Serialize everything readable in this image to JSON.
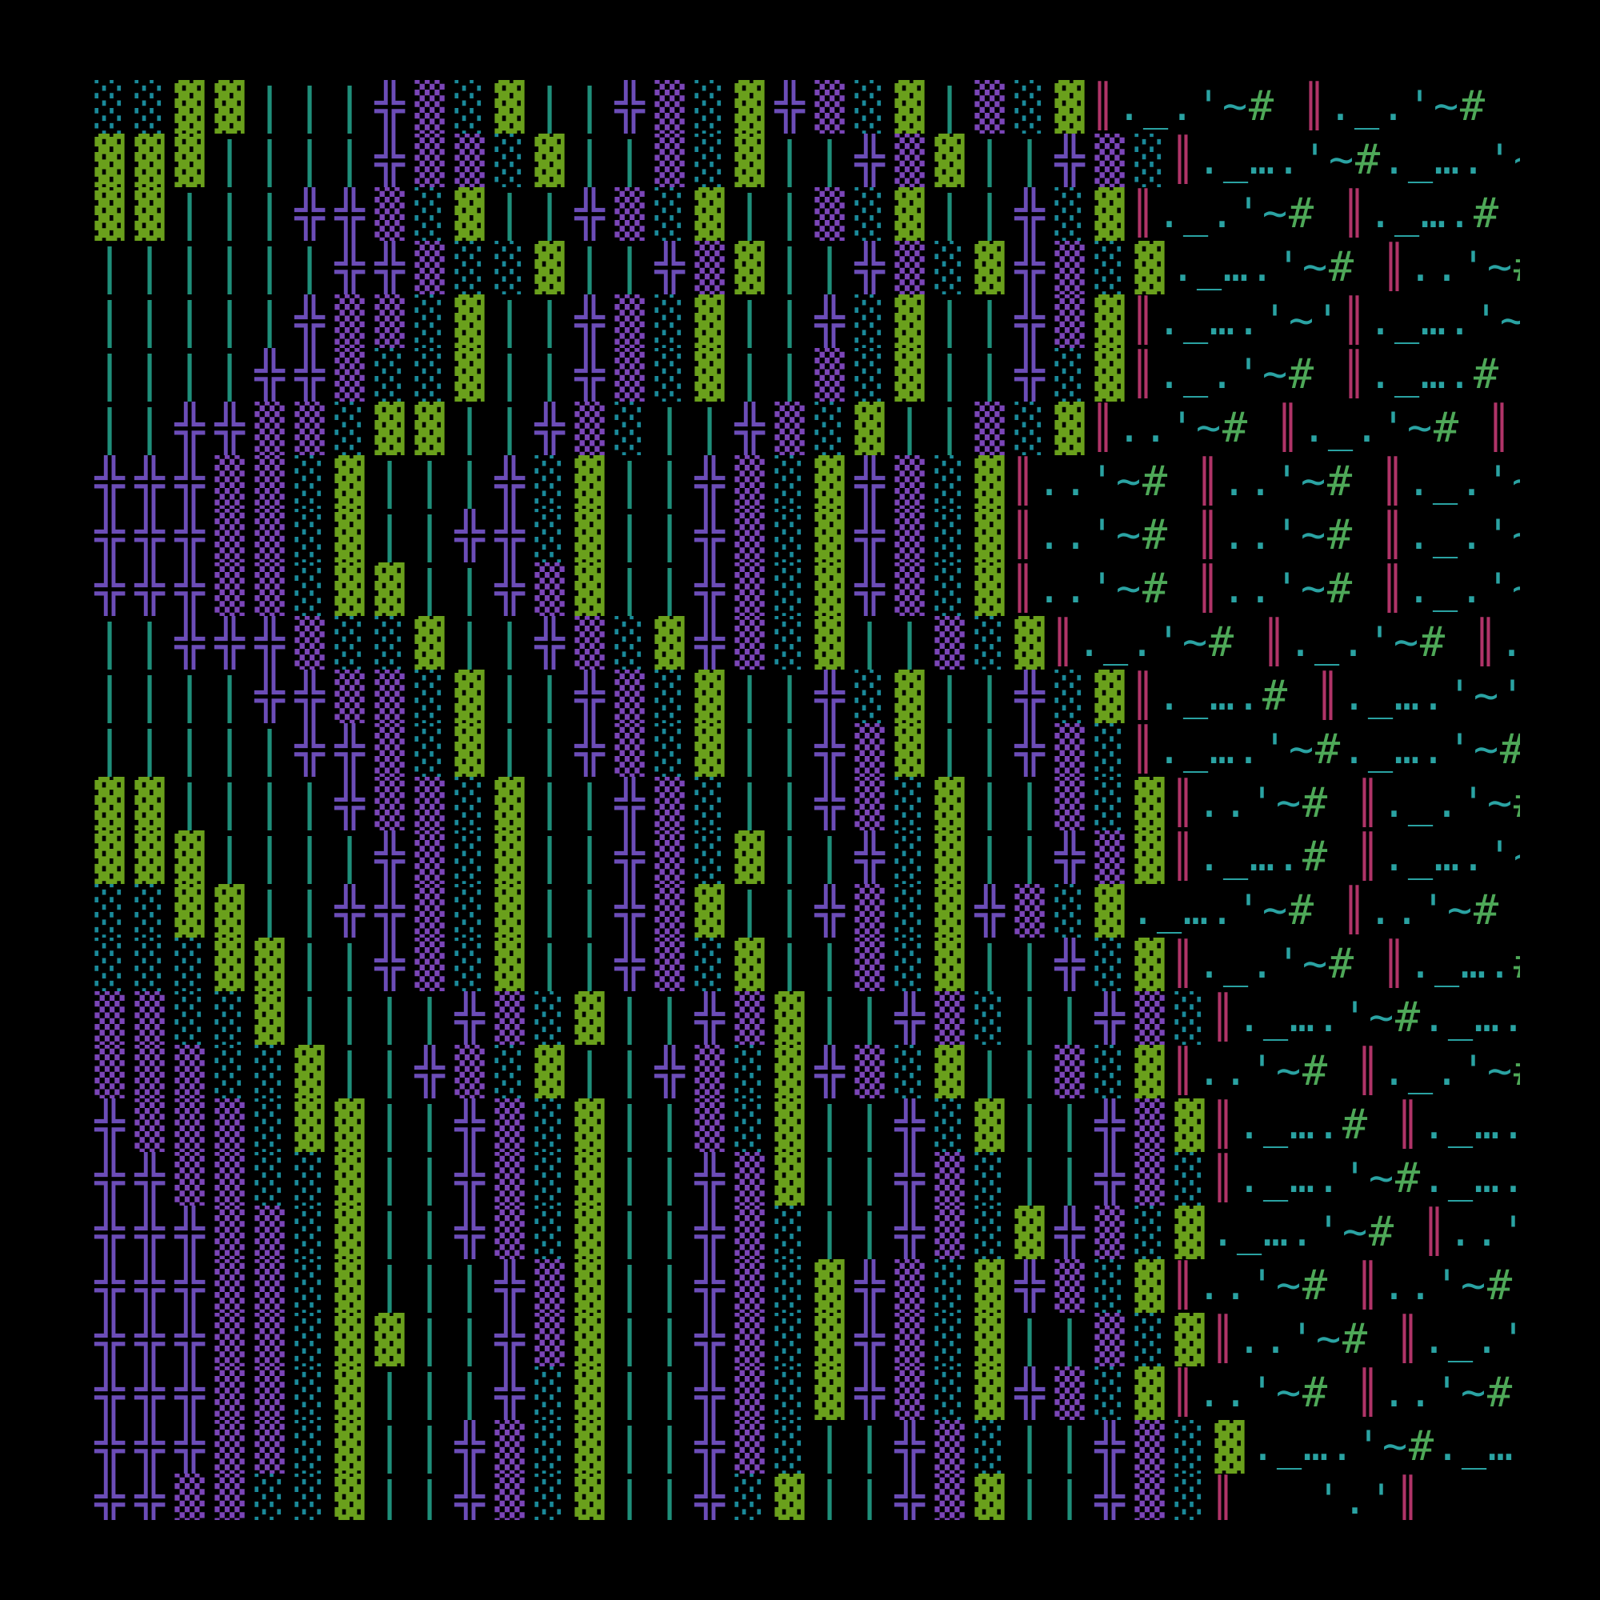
{
  "rows": [
    {
      "blocks": "░░▓▓|||╬▒░▓||╬▒░▓╬▒░▓|▒░▓",
      "text": "║._.'~# ║._.'~# ║._….'~#"
    },
    {
      "blocks": "▓▓▓||||╬▒▒░▓||▒░▓||╬▒▓||╬▒░",
      "text": "║._….'~#._….'~# ║..'~# ║."
    },
    {
      "blocks": "▓▓|||╬╬▒░▓||╬▒░▓||▒░▓||╬░▓",
      "text": "║._.'~# ║._….# ║._….'~# ║."
    },
    {
      "blocks": "||||||╬╬▒░░▓||╬▒▓||╬▒░▓╬▒░▓",
      "text": "._….'~# ║..'~# ║._.'~# ║._…"
    },
    {
      "blocks": "|||||╬▒▒░▓||╬▒░▓||╬░▓||╬▒▓",
      "text": "║._….'~'║._….'~#._….'~# ║._…"
    },
    {
      "blocks": "||||╬╬▒░░▓||╬▒░▓||▒░▓||╬░▓",
      "text": "║._.'~# ║._….# ║._….'~#._….'"
    },
    {
      "blocks": "||╬╬▒▒░▓▓||╬▒░||╬▒░▓||▒░▓",
      "text": "║..'~# ║._.'~# ║._….# ║._….'"
    },
    {
      "blocks": "╬╬╬▒▒░▓|||╬░▓||╬▒░▓╬▒░▓",
      "text": "║..'~# ║..'~# ║._.'~# ║._….'"
    },
    {
      "blocks": "╬╬╬▒▒░▓||╬╬░▓||╬▒░▓╬▒░▓",
      "text": "║..'~# ║..'~# ║._.'~# ║._….'"
    },
    {
      "blocks": "╬╬╬▒▒░▓▓||╬▒▓||╬▒░▓╬▒░▓",
      "text": "║..'~# ║..'~# ║._.'~# ║._….'"
    },
    {
      "blocks": "||╬╬╬▒░░▓||╬▒░▓╬▒░▓||▒░▓",
      "text": "║._.'~# ║._.'~# ║._….'~'║._….'"
    },
    {
      "blocks": "||||╬╬▒▒░▓||╬▒░▓||╬░▓||╬░▓",
      "text": "║._….# ║._….'~'║._….'~# ║..'"
    },
    {
      "blocks": "|||||╬╬▒░▓||╬▒░▓||╬▒▓||╬▒░",
      "text": "║._….'~#._….'~#._….'~# ║._…"
    },
    {
      "blocks": "▓▓||||╬▒▒░▓||╬▒░||╬▒░▓||▒░▓",
      "text": "║..'~# ║._.'~# ║._….# ║._…"
    },
    {
      "blocks": "▓▓▓||||╬▒░▓||╬▒░▓||╬░▓||╬▒▓",
      "text": "║._….# ║._….'~'║._….'~# ║."
    },
    {
      "blocks": "░░▓▓||╬╬▒░▓||╬▒▓||╬▒░▓╬▒░▓",
      "text": "._….'~# ║..'~# ║._.'~# ║."
    },
    {
      "blocks": "░░░▓▓||╬▒░▓||╬▒░▓||▒░▓||╬░▓",
      "text": "║._.'~# ║._….# ║._….'~#"
    },
    {
      "blocks": "▒▒░░▓||||╬▒░▓||╬▒▓||╬▒░||╬▒░",
      "text": "║._….'~#._….'~# ║..'~#"
    },
    {
      "blocks": "▒▒▒░░▓||╬▒░▓||╬▒░▓╬▒░▓||▒░▓",
      "text": "║..'~# ║._.'~# ║._….'~#"
    },
    {
      "blocks": "╬▒▒▒░▓▓||╬▒░▓||▒░▓||╬░▓||╬▒▓",
      "text": "║._….# ║._….'~'║._….'~#"
    },
    {
      "blocks": "╬╬▒▒░░▓||╬▒░▓||╬▒▓||╬▒░||╬▒░",
      "text": "║._….'~#._….'~# ║._.'~#"
    },
    {
      "blocks": "╬╬╬▒▒░▓||╬▒░▓||╬▒░||╬▒░▓╬▒░▓",
      "text": "._….'~# ║..'~# ║._….'"
    },
    {
      "blocks": "╬╬╬▒▒░▓|||╬▒▓||╬▒░▓╬▒░▓╬▒░▓",
      "text": "║..'~# ║..'~# ║._….'"
    },
    {
      "blocks": "╬╬╬▒▒░▓▓||╬▒▓||╬▒░▓╬▒░▓||▒░▓",
      "text": "║..'~# ║._.'~# ║._….'"
    },
    {
      "blocks": "╬╬╬▒▒░▓|||╬░▓||╬▒░▓╬▒░▓╬▒░▓",
      "text": "║..'~# ║..'~# ║._….'"
    },
    {
      "blocks": "╬╬╬▒▒░▓||╬▒░▓||╬▒░||╬▒░||╬▒░▓",
      "text": "._….'~#._….'~# ║._….'"
    },
    {
      "blocks": "╬╬▒▒░░▓||╬▒░▓||╬░▓||╬▒▓||╬▒░",
      "text": "║   '.'║    '.#    '.#"
    }
  ]
}
